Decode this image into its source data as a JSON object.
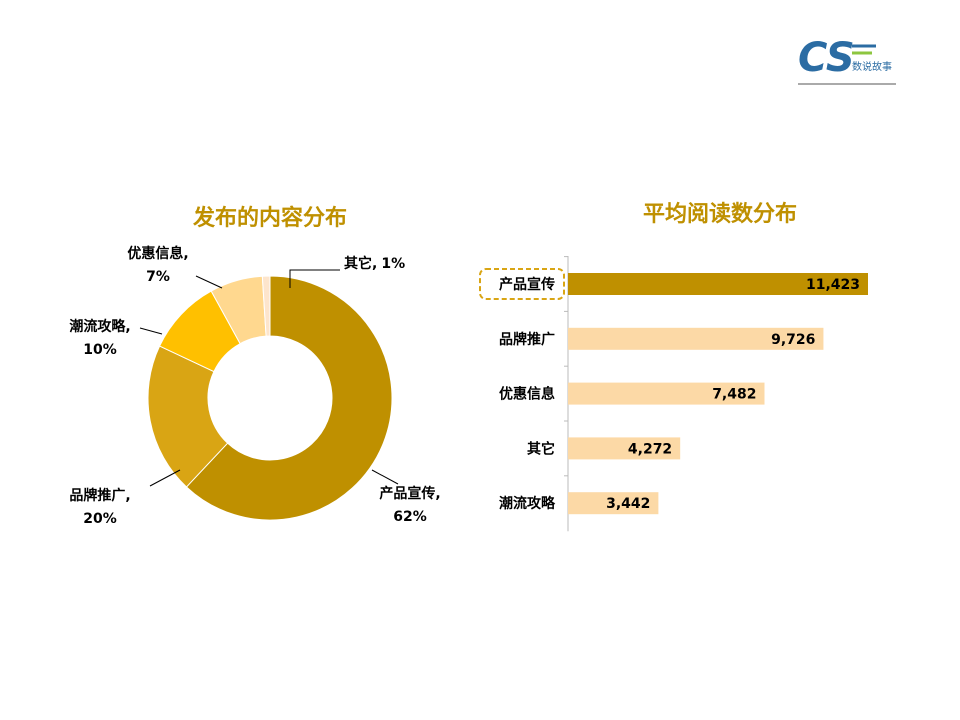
{
  "logo": {
    "mark": "CS",
    "text": "数说故事"
  },
  "chart_data": [
    {
      "type": "donut",
      "title": "发布的内容分布",
      "categories": [
        "产品宣传,",
        "品牌推广,",
        "潮流攻略,",
        "优惠信息,",
        "其它,"
      ],
      "values": [
        62,
        20,
        10,
        7,
        1
      ],
      "value_labels": [
        "62%",
        "20%",
        "10%",
        "7%",
        "1%"
      ],
      "colors": [
        "#bf9000",
        "#d9a514",
        "#ffc000",
        "#ffd88f",
        "#fde5cc"
      ]
    },
    {
      "type": "hbar",
      "title": "平均阅读数分布",
      "categories": [
        "产品宣传",
        "品牌推广",
        "优惠信息",
        "其它",
        "潮流攻略"
      ],
      "values": [
        11423,
        9726,
        7482,
        4272,
        3442
      ],
      "value_labels": [
        "11,423",
        "9,726",
        "7,482",
        "4,272",
        "3,442"
      ],
      "colors": [
        "#bf9000",
        "#fcd9a6",
        "#fcd9a6",
        "#fcd9a6",
        "#fcd9a6"
      ],
      "highlight": 0
    }
  ]
}
